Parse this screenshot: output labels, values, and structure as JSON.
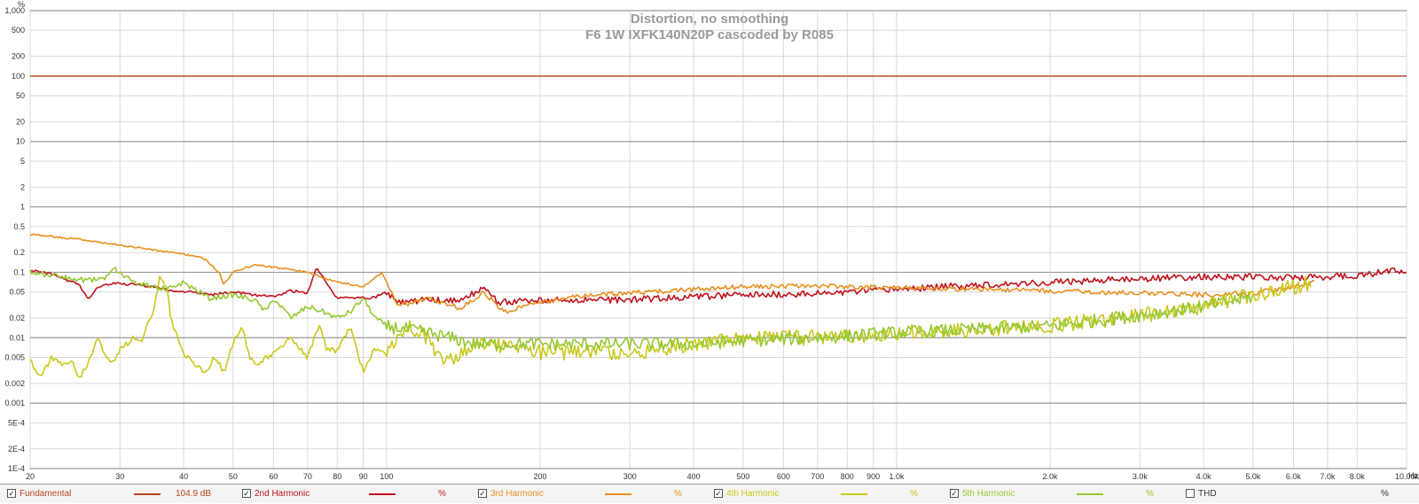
{
  "chart_data": {
    "type": "line",
    "title": "Distortion, no smoothing",
    "subtitle": "F6 1W IXFK140N20P cascoded by R085",
    "ylabel": "%",
    "xunit": "Hz",
    "x_scale": "log",
    "y_scale": "log",
    "xlim": [
      20,
      10000
    ],
    "ylim": [
      0.0001,
      1000
    ],
    "x_ticks": [
      {
        "v": 20,
        "label": "20"
      },
      {
        "v": 30,
        "label": "30"
      },
      {
        "v": 40,
        "label": "40"
      },
      {
        "v": 50,
        "label": "50"
      },
      {
        "v": 60,
        "label": "60"
      },
      {
        "v": 70,
        "label": "70"
      },
      {
        "v": 80,
        "label": "80"
      },
      {
        "v": 90,
        "label": "90"
      },
      {
        "v": 100,
        "label": "100"
      },
      {
        "v": 200,
        "label": "200"
      },
      {
        "v": 300,
        "label": "300"
      },
      {
        "v": 400,
        "label": "400"
      },
      {
        "v": 500,
        "label": "500"
      },
      {
        "v": 600,
        "label": "600"
      },
      {
        "v": 700,
        "label": "700"
      },
      {
        "v": 800,
        "label": "800"
      },
      {
        "v": 900,
        "label": "900"
      },
      {
        "v": 1000,
        "label": "1.0k"
      },
      {
        "v": 2000,
        "label": "2.0k"
      },
      {
        "v": 3000,
        "label": "3.0k"
      },
      {
        "v": 4000,
        "label": "4.0k"
      },
      {
        "v": 5000,
        "label": "5.0k"
      },
      {
        "v": 6000,
        "label": "6.0k"
      },
      {
        "v": 7000,
        "label": "7.0k"
      },
      {
        "v": 8000,
        "label": "8.0k"
      },
      {
        "v": 10000,
        "label": "10.00k"
      }
    ],
    "y_ticks": [
      {
        "v": 1000,
        "label": "1,000"
      },
      {
        "v": 500,
        "label": "500"
      },
      {
        "v": 200,
        "label": "200"
      },
      {
        "v": 100,
        "label": "100"
      },
      {
        "v": 50,
        "label": "50"
      },
      {
        "v": 20,
        "label": "20"
      },
      {
        "v": 10,
        "label": "10"
      },
      {
        "v": 5,
        "label": "5"
      },
      {
        "v": 2,
        "label": "2"
      },
      {
        "v": 1,
        "label": "1"
      },
      {
        "v": 0.5,
        "label": "0.5"
      },
      {
        "v": 0.2,
        "label": "0.2"
      },
      {
        "v": 0.1,
        "label": "0.1"
      },
      {
        "v": 0.05,
        "label": "0.05"
      },
      {
        "v": 0.02,
        "label": "0.02"
      },
      {
        "v": 0.01,
        "label": "0.01"
      },
      {
        "v": 0.005,
        "label": "0.005"
      },
      {
        "v": 0.002,
        "label": "0.002"
      },
      {
        "v": 0.001,
        "label": "0.001"
      },
      {
        "v": 0.0005,
        "label": "5E-4"
      },
      {
        "v": 0.0002,
        "label": "2E-4"
      },
      {
        "v": 0.0001,
        "label": "1E-4"
      }
    ],
    "major_y": [
      1000,
      100,
      10,
      1,
      0.1,
      0.01,
      0.001,
      0.0001
    ],
    "grid": true,
    "legend_position": "bottom",
    "series": [
      {
        "name": "Fundamental",
        "color": "#b4461e",
        "width": 1.4,
        "jitter": 0,
        "points": [
          [
            20,
            100
          ],
          [
            10000,
            100
          ]
        ]
      },
      {
        "name": "2nd Harmonic",
        "color": "#c0141e",
        "width": 1.6,
        "jitter": 0.05,
        "points": [
          [
            20,
            0.105
          ],
          [
            22,
            0.095
          ],
          [
            24,
            0.072
          ],
          [
            25,
            0.065
          ],
          [
            26,
            0.038
          ],
          [
            27,
            0.058
          ],
          [
            29,
            0.068
          ],
          [
            32,
            0.065
          ],
          [
            35,
            0.06
          ],
          [
            38,
            0.052
          ],
          [
            42,
            0.05
          ],
          [
            45,
            0.045
          ],
          [
            50,
            0.05
          ],
          [
            55,
            0.045
          ],
          [
            60,
            0.043
          ],
          [
            65,
            0.052
          ],
          [
            70,
            0.048
          ],
          [
            73,
            0.12
          ],
          [
            76,
            0.07
          ],
          [
            80,
            0.04
          ],
          [
            85,
            0.042
          ],
          [
            90,
            0.04
          ],
          [
            95,
            0.042
          ],
          [
            100,
            0.05
          ],
          [
            105,
            0.035
          ],
          [
            120,
            0.038
          ],
          [
            140,
            0.036
          ],
          [
            155,
            0.06
          ],
          [
            165,
            0.035
          ],
          [
            200,
            0.037
          ],
          [
            250,
            0.038
          ],
          [
            300,
            0.038
          ],
          [
            400,
            0.042
          ],
          [
            500,
            0.045
          ],
          [
            700,
            0.047
          ],
          [
            900,
            0.052
          ],
          [
            1000,
            0.055
          ],
          [
            1500,
            0.065
          ],
          [
            2000,
            0.07
          ],
          [
            3000,
            0.08
          ],
          [
            4000,
            0.085
          ],
          [
            5000,
            0.085
          ],
          [
            6000,
            0.082
          ],
          [
            7000,
            0.085
          ],
          [
            8000,
            0.09
          ],
          [
            9000,
            0.1
          ],
          [
            10000,
            0.11
          ]
        ]
      },
      {
        "name": "3rd Harmonic",
        "color": "#e8901e",
        "width": 1.6,
        "jitter": 0.035,
        "points": [
          [
            20,
            0.38
          ],
          [
            25,
            0.32
          ],
          [
            30,
            0.26
          ],
          [
            35,
            0.22
          ],
          [
            40,
            0.19
          ],
          [
            44,
            0.16
          ],
          [
            47,
            0.1
          ],
          [
            48,
            0.065
          ],
          [
            50,
            0.1
          ],
          [
            55,
            0.13
          ],
          [
            60,
            0.12
          ],
          [
            70,
            0.1
          ],
          [
            80,
            0.07
          ],
          [
            90,
            0.06
          ],
          [
            98,
            0.1
          ],
          [
            105,
            0.03
          ],
          [
            120,
            0.04
          ],
          [
            140,
            0.028
          ],
          [
            155,
            0.05
          ],
          [
            170,
            0.025
          ],
          [
            200,
            0.035
          ],
          [
            250,
            0.045
          ],
          [
            300,
            0.048
          ],
          [
            400,
            0.055
          ],
          [
            500,
            0.06
          ],
          [
            700,
            0.062
          ],
          [
            1000,
            0.058
          ],
          [
            1500,
            0.055
          ],
          [
            2000,
            0.052
          ],
          [
            3000,
            0.048
          ],
          [
            4000,
            0.045
          ],
          [
            5000,
            0.048
          ],
          [
            6000,
            0.06
          ],
          [
            6600,
            0.07
          ]
        ]
      },
      {
        "name": "4th Harmonic",
        "color": "#c8c81e",
        "width": 1.6,
        "jitter": 0.12,
        "points": [
          [
            20,
            0.0045
          ],
          [
            21,
            0.0025
          ],
          [
            22,
            0.005
          ],
          [
            23,
            0.004
          ],
          [
            24,
            0.0045
          ],
          [
            25,
            0.0025
          ],
          [
            26,
            0.004
          ],
          [
            27,
            0.01
          ],
          [
            28,
            0.006
          ],
          [
            29,
            0.004
          ],
          [
            30,
            0.007
          ],
          [
            32,
            0.01
          ],
          [
            33,
            0.008
          ],
          [
            35,
            0.03
          ],
          [
            36,
            0.09
          ],
          [
            37,
            0.06
          ],
          [
            38,
            0.015
          ],
          [
            39,
            0.01
          ],
          [
            40,
            0.006
          ],
          [
            42,
            0.004
          ],
          [
            44,
            0.003
          ],
          [
            46,
            0.005
          ],
          [
            48,
            0.003
          ],
          [
            50,
            0.008
          ],
          [
            52,
            0.015
          ],
          [
            54,
            0.005
          ],
          [
            56,
            0.004
          ],
          [
            60,
            0.006
          ],
          [
            65,
            0.01
          ],
          [
            70,
            0.005
          ],
          [
            72,
            0.01
          ],
          [
            74,
            0.015
          ],
          [
            76,
            0.007
          ],
          [
            80,
            0.006
          ],
          [
            85,
            0.015
          ],
          [
            90,
            0.003
          ],
          [
            95,
            0.007
          ],
          [
            100,
            0.006
          ],
          [
            110,
            0.015
          ],
          [
            120,
            0.01
          ],
          [
            130,
            0.004
          ],
          [
            150,
            0.009
          ],
          [
            200,
            0.006
          ],
          [
            300,
            0.006
          ],
          [
            400,
            0.008
          ],
          [
            500,
            0.01
          ],
          [
            700,
            0.01
          ],
          [
            1000,
            0.012
          ],
          [
            2000,
            0.015
          ],
          [
            3000,
            0.022
          ],
          [
            4000,
            0.03
          ],
          [
            5000,
            0.045
          ],
          [
            6000,
            0.06
          ],
          [
            6500,
            0.07
          ]
        ]
      },
      {
        "name": "5th Harmonic",
        "color": "#96c832",
        "width": 1.6,
        "jitter": 0.1,
        "points": [
          [
            20,
            0.1
          ],
          [
            22,
            0.09
          ],
          [
            24,
            0.08
          ],
          [
            26,
            0.075
          ],
          [
            28,
            0.08
          ],
          [
            29,
            0.12
          ],
          [
            30,
            0.1
          ],
          [
            32,
            0.07
          ],
          [
            35,
            0.06
          ],
          [
            37,
            0.055
          ],
          [
            40,
            0.07
          ],
          [
            45,
            0.04
          ],
          [
            50,
            0.045
          ],
          [
            55,
            0.038
          ],
          [
            58,
            0.025
          ],
          [
            60,
            0.04
          ],
          [
            65,
            0.02
          ],
          [
            70,
            0.03
          ],
          [
            75,
            0.025
          ],
          [
            80,
            0.02
          ],
          [
            85,
            0.025
          ],
          [
            90,
            0.04
          ],
          [
            95,
            0.02
          ],
          [
            100,
            0.015
          ],
          [
            120,
            0.012
          ],
          [
            150,
            0.008
          ],
          [
            200,
            0.008
          ],
          [
            300,
            0.008
          ],
          [
            400,
            0.008
          ],
          [
            500,
            0.009
          ],
          [
            700,
            0.01
          ],
          [
            1000,
            0.012
          ],
          [
            2000,
            0.015
          ],
          [
            3000,
            0.022
          ],
          [
            4000,
            0.03
          ],
          [
            5000,
            0.042
          ]
        ]
      }
    ]
  },
  "legend": [
    {
      "label": "Fundamental",
      "checked": true,
      "value": "104.9 dB",
      "color": "#b4461e"
    },
    {
      "label": "2nd Harmonic",
      "checked": true,
      "value": "%",
      "color": "#c0141e"
    },
    {
      "label": "3rd Harmonic",
      "checked": true,
      "value": "%",
      "color": "#e8901e"
    },
    {
      "label": "4th Harmonic",
      "checked": true,
      "value": "%",
      "color": "#c8c81e"
    },
    {
      "label": "5th Harmonic",
      "checked": true,
      "value": "%",
      "color": "#96c832"
    },
    {
      "label": "THD",
      "checked": false,
      "value": "%",
      "color": "#333333"
    }
  ]
}
